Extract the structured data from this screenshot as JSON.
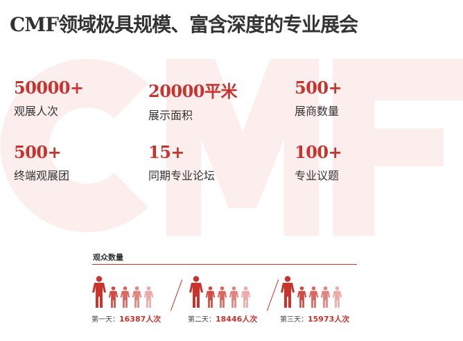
{
  "title": "CMF领域极具规模、富含深度的专业展会",
  "watermark": "CMF",
  "stats": [
    {
      "value": "50000+",
      "label": "观展人次"
    },
    {
      "value": "20000平米",
      "label": "展示面积"
    },
    {
      "value": "500+",
      "label": "展商数量"
    },
    {
      "value": "500+",
      "label": "终端观展团"
    },
    {
      "value": "15+",
      "label": "同期专业论坛"
    },
    {
      "value": "100+",
      "label": "专业议题"
    }
  ],
  "audience": {
    "heading": "观众数量",
    "days": [
      {
        "label": "第一天：",
        "value": "16387人次"
      },
      {
        "label": "第二天：",
        "value": "18446人次"
      },
      {
        "label": "第三天：",
        "value": "15973人次"
      }
    ],
    "icon": "person-icon",
    "colors": [
      "#c8332e",
      "#cf4b43",
      "#d9665f",
      "#e2837d",
      "#ebaaa6"
    ]
  }
}
